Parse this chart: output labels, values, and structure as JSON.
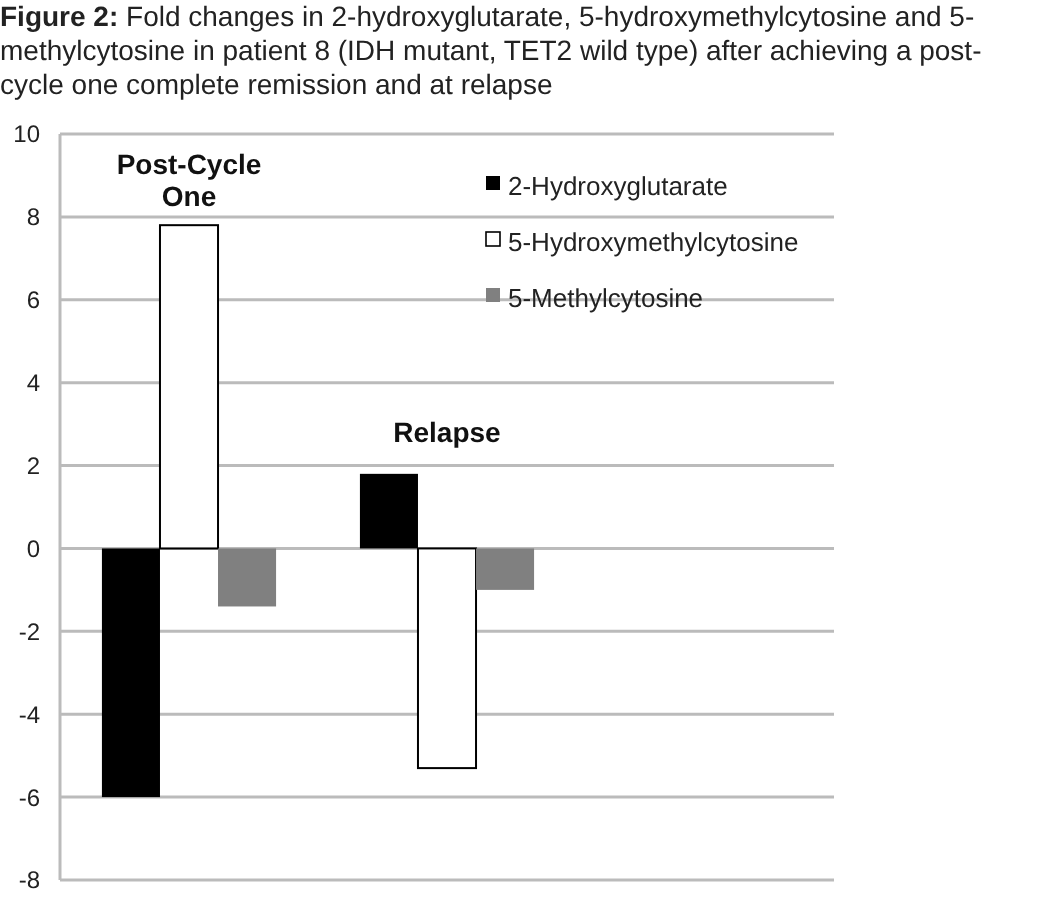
{
  "chart_data": {
    "type": "bar",
    "title": "Figure 2: Fold changes in 2-hydroxyglutarate, 5-hydroxymethylcytosine and 5-methylcytosine in patient 8 (IDH mutant, TET2 wild type) after achieving a post-cycle one complete remission and at relapse",
    "categories": [
      "Post-Cycle One",
      "Relapse",
      null
    ],
    "series": [
      {
        "name": "2-Hydroxyglutarate",
        "color": "#000000",
        "values": [
          -6.0,
          1.8,
          null
        ]
      },
      {
        "name": "5-Hydroxymethylcytosine",
        "color": "#ffffff",
        "values": [
          7.8,
          -5.3,
          null
        ]
      },
      {
        "name": "5-Methylcytosine",
        "color": "#808080",
        "values": [
          -1.4,
          -1.0,
          null
        ]
      }
    ],
    "ylim": [
      -8,
      10
    ],
    "yticks": [
      -8,
      -6,
      -4,
      -2,
      0,
      2,
      4,
      6,
      8,
      10
    ],
    "grid": "y",
    "legend": "top right"
  }
}
